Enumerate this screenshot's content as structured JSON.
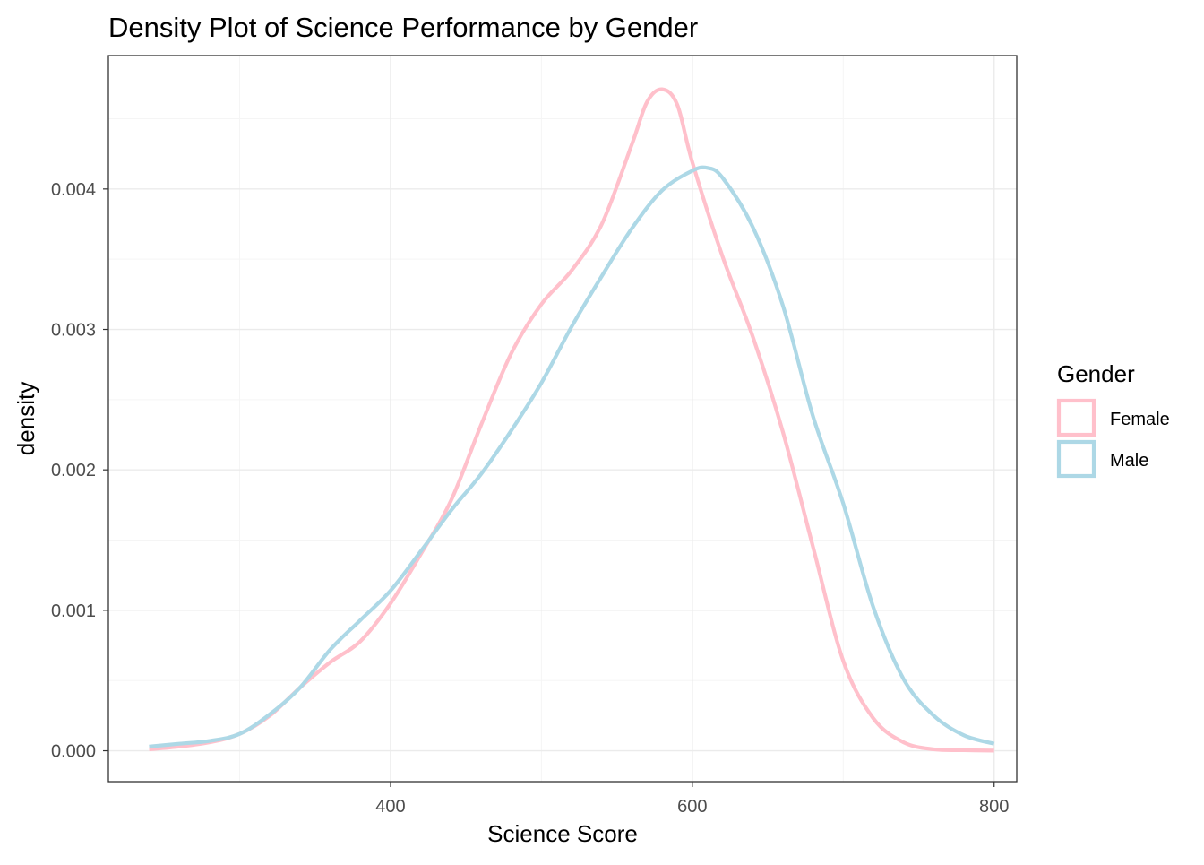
{
  "chart_data": {
    "type": "line",
    "title": "Density Plot of Science Performance by Gender",
    "xlabel": "Science Score",
    "ylabel": "density",
    "xlim": [
      213,
      815
    ],
    "ylim": [
      -0.00022,
      0.00495
    ],
    "x_ticks": [
      400,
      600,
      800
    ],
    "x_tick_labels": [
      "400",
      "600",
      "800"
    ],
    "y_ticks": [
      0.0,
      0.001,
      0.002,
      0.003,
      0.004
    ],
    "y_tick_labels": [
      "0.000",
      "0.001",
      "0.002",
      "0.003",
      "0.004"
    ],
    "grid": true,
    "legend": {
      "title": "Gender",
      "position": "right",
      "entries": [
        "Female",
        "Male"
      ]
    },
    "colors": {
      "Female": "#ffc0cb",
      "Male": "#add8e6",
      "grid_major": "#ebebeb",
      "grid_minor": "#f5f5f5",
      "panel_border": "#333333",
      "axis_text": "#4d4d4d"
    },
    "series": [
      {
        "name": "Female",
        "x": [
          240,
          260,
          280,
          300,
          320,
          340,
          360,
          380,
          400,
          420,
          440,
          460,
          480,
          500,
          520,
          540,
          560,
          570,
          580,
          590,
          600,
          620,
          640,
          660,
          680,
          700,
          720,
          740,
          760,
          780,
          800
        ],
        "y": [
          1e-05,
          3e-05,
          6e-05,
          0.00012,
          0.00025,
          0.00045,
          0.00063,
          0.00078,
          0.00105,
          0.0014,
          0.00178,
          0.00232,
          0.00283,
          0.00318,
          0.00342,
          0.00375,
          0.00432,
          0.00462,
          0.00471,
          0.0046,
          0.00419,
          0.00352,
          0.00295,
          0.00227,
          0.00145,
          0.00064,
          0.00023,
          6e-05,
          1e-05,
          4e-06,
          1e-06
        ]
      },
      {
        "name": "Male",
        "x": [
          240,
          260,
          280,
          300,
          320,
          340,
          360,
          380,
          400,
          420,
          440,
          460,
          480,
          500,
          520,
          540,
          560,
          580,
          600,
          610,
          620,
          640,
          660,
          680,
          700,
          720,
          740,
          760,
          780,
          800
        ],
        "y": [
          3e-05,
          5e-05,
          7e-05,
          0.00012,
          0.00026,
          0.00045,
          0.00072,
          0.00093,
          0.00114,
          0.00142,
          0.00171,
          0.00197,
          0.00228,
          0.00262,
          0.00302,
          0.00338,
          0.00372,
          0.00399,
          0.00413,
          0.00415,
          0.00408,
          0.00373,
          0.00317,
          0.00238,
          0.00176,
          0.00102,
          0.00051,
          0.00025,
          0.00011,
          5e-05
        ]
      }
    ]
  }
}
